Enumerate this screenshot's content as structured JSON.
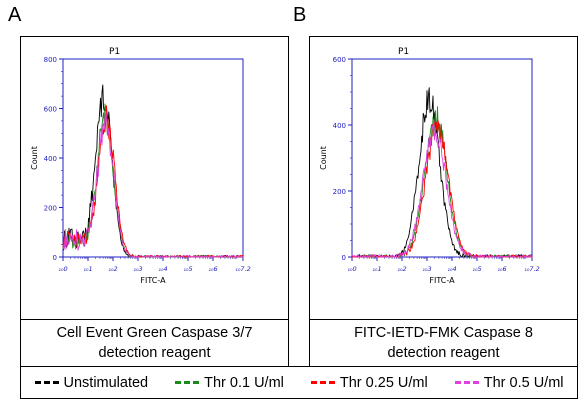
{
  "panels": [
    {
      "letter": "A",
      "caption_line1": "Cell Event Green Caspase 3/7",
      "caption_line2": "detection reagent"
    },
    {
      "letter": "B",
      "caption_line1": "FITC-IETD-FMK Caspase 8",
      "caption_line2": "detection reagent"
    }
  ],
  "legend": [
    {
      "label": "Unstimulated",
      "color": "#000000"
    },
    {
      "label": "Thr 0.1 U/ml",
      "color": "#1a8a1a"
    },
    {
      "label": "Thr 0.25 U/ml",
      "color": "#ff0000"
    },
    {
      "label": "Thr 0.5 U/ml",
      "color": "#e040e0"
    }
  ],
  "chart_data": [
    {
      "type": "line",
      "title": "P1",
      "xlabel": "FITC-A",
      "ylabel": "Count",
      "xlim": [
        0,
        7.2
      ],
      "ylim": [
        0,
        800
      ],
      "x_ticks": [
        "10^0",
        "10^1",
        "10^2",
        "10^3",
        "10^4",
        "10^5",
        "10^6",
        "10^7.2"
      ],
      "y_ticks": [
        0,
        200,
        400,
        600,
        800
      ],
      "series": [
        {
          "name": "Unstimulated",
          "color": "#000000",
          "peak_x": 1.65,
          "peak_y": 640,
          "width": 0.32,
          "tail": 90
        },
        {
          "name": "Thr 0.1 U/ml",
          "color": "#1a8a1a",
          "peak_x": 1.7,
          "peak_y": 560,
          "width": 0.32,
          "tail": 80
        },
        {
          "name": "Thr 0.25 U/ml",
          "color": "#ff0000",
          "peak_x": 1.75,
          "peak_y": 540,
          "width": 0.33,
          "tail": 80
        },
        {
          "name": "Thr 0.5 U/ml",
          "color": "#e040e0",
          "peak_x": 1.72,
          "peak_y": 520,
          "width": 0.32,
          "tail": 85
        }
      ]
    },
    {
      "type": "line",
      "title": "P1",
      "xlabel": "FITC-A",
      "ylabel": "Count",
      "xlim": [
        0,
        7.2
      ],
      "ylim": [
        0,
        600
      ],
      "x_ticks": [
        "10^0",
        "10^1",
        "10^2",
        "10^3",
        "10^4",
        "10^5",
        "10^6",
        "10^7.2"
      ],
      "y_ticks": [
        0,
        200,
        400,
        600
      ],
      "series": [
        {
          "name": "Unstimulated",
          "color": "#000000",
          "peak_x": 3.1,
          "peak_y": 475,
          "width": 0.42,
          "tail": 0
        },
        {
          "name": "Thr 0.1 U/ml",
          "color": "#1a8a1a",
          "peak_x": 3.35,
          "peak_y": 420,
          "width": 0.45,
          "tail": 0
        },
        {
          "name": "Thr 0.25 U/ml",
          "color": "#ff0000",
          "peak_x": 3.4,
          "peak_y": 405,
          "width": 0.45,
          "tail": 0
        },
        {
          "name": "Thr 0.5 U/ml",
          "color": "#e040e0",
          "peak_x": 3.3,
          "peak_y": 385,
          "width": 0.46,
          "tail": 0
        }
      ]
    }
  ]
}
